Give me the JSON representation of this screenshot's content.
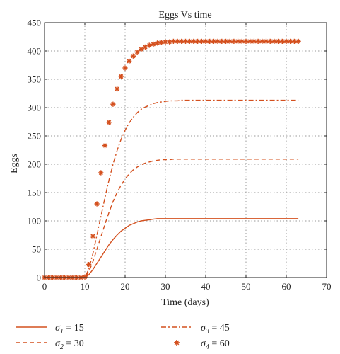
{
  "chart_data": {
    "type": "line",
    "title": "Eggs Vs time",
    "xlabel": "Time (days)",
    "ylabel": "Eggs",
    "xlim": [
      0,
      70
    ],
    "ylim": [
      0,
      450
    ],
    "x_ticks": [
      0,
      10,
      20,
      30,
      40,
      50,
      60,
      70
    ],
    "y_ticks": [
      0,
      50,
      100,
      150,
      200,
      250,
      300,
      350,
      400,
      450
    ],
    "grid": true,
    "color": "#d4501e",
    "x": [
      0,
      1,
      2,
      3,
      4,
      5,
      6,
      7,
      8,
      9,
      10,
      11,
      12,
      13,
      14,
      15,
      16,
      17,
      18,
      19,
      20,
      21,
      22,
      23,
      24,
      25,
      26,
      27,
      28,
      29,
      30,
      31,
      32,
      33,
      34,
      35,
      36,
      37,
      38,
      39,
      40,
      41,
      42,
      43,
      44,
      45,
      46,
      47,
      48,
      49,
      50,
      51,
      52,
      53,
      54,
      55,
      56,
      57,
      58,
      59,
      60,
      61,
      62,
      63
    ],
    "series": [
      {
        "name": "σ1 = 15",
        "style": "solid",
        "values": [
          0,
          0,
          0,
          0,
          0,
          0,
          0,
          0,
          0,
          0,
          0,
          5,
          14,
          25,
          36,
          47,
          58,
          67,
          75,
          82,
          87,
          92,
          95,
          98,
          100,
          101,
          102,
          103,
          104,
          104,
          104,
          104,
          104,
          104,
          104,
          104,
          104,
          104,
          104,
          104,
          104,
          104,
          104,
          104,
          104,
          104,
          104,
          104,
          104,
          104,
          104,
          104,
          104,
          104,
          104,
          104,
          104,
          104,
          104,
          104,
          104,
          104,
          104,
          104
        ]
      },
      {
        "name": "σ2 = 30",
        "style": "dashed",
        "values": [
          0,
          0,
          0,
          0,
          0,
          0,
          0,
          0,
          0,
          0,
          0,
          10,
          28,
          50,
          72,
          94,
          115,
          134,
          150,
          163,
          174,
          183,
          190,
          195,
          199,
          202,
          204,
          206,
          207,
          208,
          208,
          208,
          209,
          209,
          209,
          209,
          209,
          209,
          209,
          209,
          209,
          209,
          209,
          209,
          209,
          209,
          209,
          209,
          209,
          209,
          209,
          209,
          209,
          209,
          209,
          209,
          209,
          209,
          209,
          209,
          209,
          209,
          209,
          209
        ]
      },
      {
        "name": "σ3 = 45",
        "style": "dashdot",
        "values": [
          0,
          0,
          0,
          0,
          0,
          0,
          0,
          0,
          0,
          0,
          0,
          15,
          42,
          75,
          108,
          141,
          172,
          200,
          224,
          244,
          260,
          273,
          283,
          291,
          297,
          301,
          304,
          307,
          309,
          310,
          311,
          312,
          312,
          312,
          313,
          313,
          313,
          313,
          313,
          313,
          313,
          313,
          313,
          313,
          313,
          313,
          313,
          313,
          313,
          313,
          313,
          313,
          313,
          313,
          313,
          313,
          313,
          313,
          313,
          313,
          313,
          313,
          313,
          313
        ]
      },
      {
        "name": "σ4 = 60",
        "style": "markers",
        "values": [
          0,
          0,
          0,
          0,
          0,
          0,
          0,
          0,
          0,
          0,
          1,
          23,
          73,
          130,
          185,
          233,
          274,
          306,
          333,
          355,
          370,
          382,
          391,
          398,
          403,
          407,
          410,
          412,
          414,
          415,
          416,
          416,
          417,
          417,
          417,
          417,
          417,
          417,
          417,
          417,
          417,
          417,
          417,
          417,
          417,
          417,
          417,
          417,
          417,
          417,
          417,
          417,
          417,
          417,
          417,
          417,
          417,
          417,
          417,
          417,
          417,
          417,
          417,
          417
        ]
      }
    ],
    "legend": {
      "placement": "bottom",
      "items": [
        {
          "prefix": "σ",
          "sub": "1",
          "suffix": " = 15",
          "style": "solid"
        },
        {
          "prefix": "σ",
          "sub": "2",
          "suffix": " = 30",
          "style": "dashed"
        },
        {
          "prefix": "σ",
          "sub": "3",
          "suffix": " = 45",
          "style": "dashdot"
        },
        {
          "prefix": "σ",
          "sub": "4",
          "suffix": " = 60",
          "style": "markers"
        }
      ]
    }
  }
}
